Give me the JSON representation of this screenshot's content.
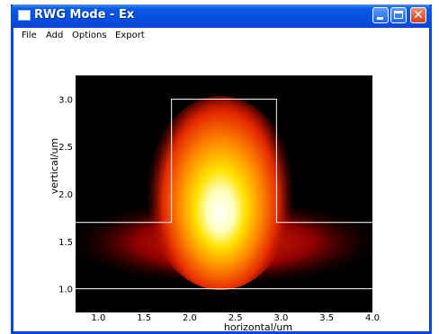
{
  "window": {
    "title": "RWG Mode - Ex"
  },
  "menu": {
    "items": [
      "File",
      "Add",
      "Options",
      "Export"
    ]
  },
  "plot": {
    "xlabel": "horizontal/um",
    "ylabel": "vertical/um",
    "xticks": [
      "1.0",
      "1.5",
      "2.0",
      "2.5",
      "3.0",
      "3.5",
      "4.0"
    ],
    "yticks": [
      "1.0",
      "1.5",
      "2.0",
      "2.5",
      "3.0"
    ]
  },
  "chart_data": {
    "type": "heatmap",
    "title": "",
    "xlabel": "horizontal/um",
    "ylabel": "vertical/um",
    "xlim": [
      0.75,
      4.0
    ],
    "ylim": [
      0.75,
      3.25
    ],
    "field_peak": {
      "x": 2.35,
      "y": 1.75
    },
    "waveguide_outline": {
      "ridge": {
        "x": [
          1.8,
          2.95
        ],
        "y": [
          1.7,
          3.0
        ]
      },
      "slab_top": 1.7,
      "slab_bottom": 1.0
    },
    "colormap": [
      "#000000",
      "#b40000",
      "#ff4a00",
      "#ffb000",
      "#ffff60",
      "#ffffff"
    ]
  }
}
